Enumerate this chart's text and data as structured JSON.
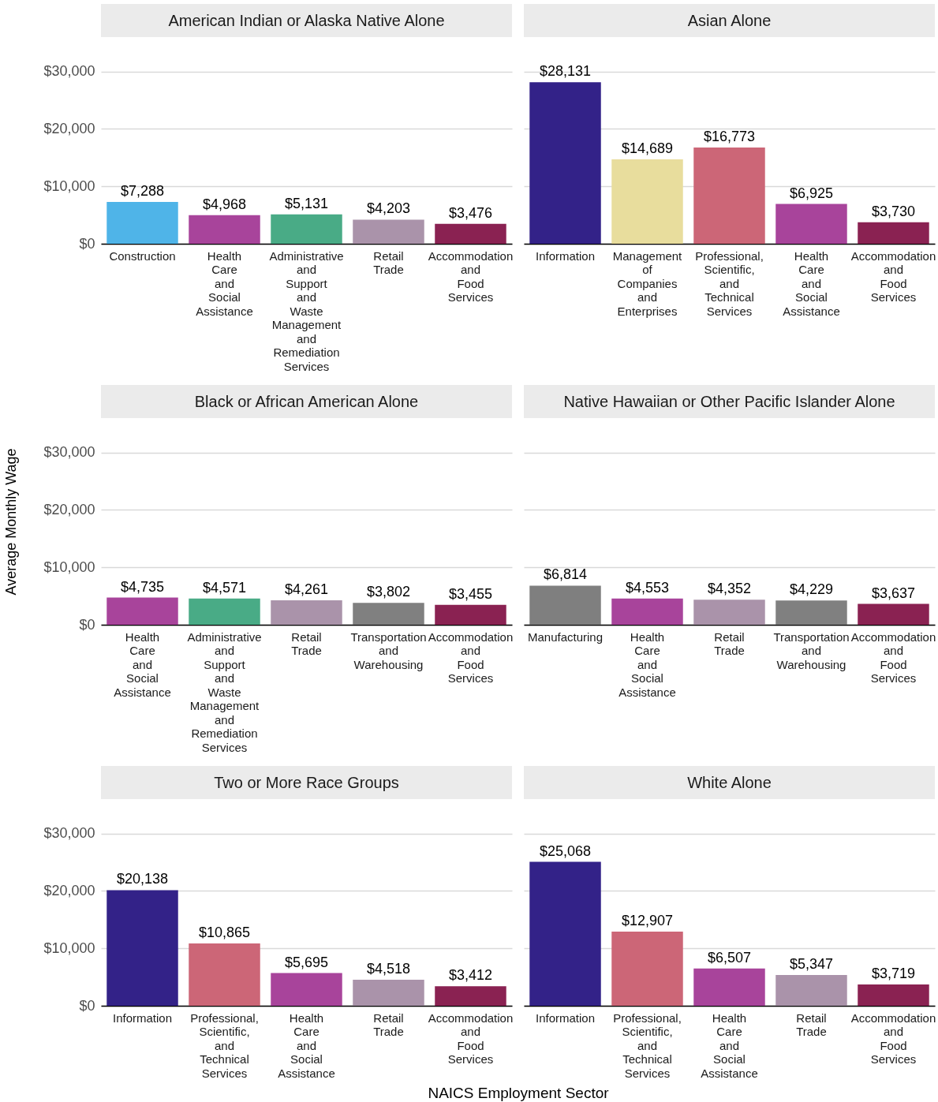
{
  "chart_data": [
    {
      "type": "bar",
      "title": "American Indian or Alaska Native Alone",
      "categories": [
        "Construction",
        "Health Care and Social Assistance",
        "Administrative and Support and Waste Management and Remediation Services",
        "Retail Trade",
        "Accommodation and Food Services"
      ],
      "values": [
        7288,
        4968,
        5131,
        4203,
        3476
      ],
      "value_labels": [
        "$7,288",
        "$4,968",
        "$5,131",
        "$4,203",
        "$3,476"
      ],
      "colors": [
        "#4fb4e8",
        "#a8449b",
        "#49ab86",
        "#aa93aa",
        "#8a2252"
      ],
      "ylim": [
        0,
        36000
      ],
      "yticks": [
        {
          "value": 0,
          "label": "$0"
        },
        {
          "value": 10000,
          "label": "$10,000"
        },
        {
          "value": 20000,
          "label": "$20,000"
        },
        {
          "value": 30000,
          "label": "$30,000"
        }
      ],
      "grid": "y"
    },
    {
      "type": "bar",
      "title": "Asian Alone",
      "categories": [
        "Information",
        "Management of Companies and Enterprises",
        "Professional, Scientific, and Technical Services",
        "Health Care and Social Assistance",
        "Accommodation and Food Services"
      ],
      "values": [
        28131,
        14689,
        16773,
        6925,
        3730
      ],
      "value_labels": [
        "$28,131",
        "$14,689",
        "$16,773",
        "$6,925",
        "$3,730"
      ],
      "colors": [
        "#332288",
        "#e8dd9d",
        "#cc6677",
        "#a8449b",
        "#8a2252"
      ],
      "ylim": [
        0,
        36000
      ],
      "yticks": [
        0,
        10000,
        20000,
        30000
      ],
      "grid": "y",
      "tick_labels": "x"
    },
    {
      "type": "bar",
      "title": "Black or African American Alone",
      "ylabel": "Average Monthly Wage",
      "categories": [
        "Health Care and Social Assistance",
        "Administrative and Support and Waste Management and Remediation Services",
        "Retail Trade",
        "Transportation and Warehousing",
        "Accommodation and Food Services"
      ],
      "values": [
        4735,
        4571,
        4261,
        3802,
        3455
      ],
      "value_labels": [
        "$4,735",
        "$4,571",
        "$4,261",
        "$3,802",
        "$3,455"
      ],
      "colors": [
        "#a8449b",
        "#49ab86",
        "#aa93aa",
        "#808080",
        "#8a2252"
      ],
      "ylim": [
        0,
        36000
      ],
      "yticks": [
        {
          "value": 0,
          "label": "$0"
        },
        {
          "value": 10000,
          "label": "$10,000"
        },
        {
          "value": 20000,
          "label": "$20,000"
        },
        {
          "value": 30000,
          "label": "$30,000"
        }
      ],
      "grid": "y"
    },
    {
      "type": "bar",
      "title": "Native Hawaiian or Other Pacific Islander Alone",
      "categories": [
        "Manufacturing",
        "Health Care and Social Assistance",
        "Retail Trade",
        "Transportation and Warehousing",
        "Accommodation and Food Services"
      ],
      "values": [
        6814,
        4553,
        4352,
        4229,
        3637
      ],
      "value_labels": [
        "$6,814",
        "$4,553",
        "$4,352",
        "$4,229",
        "$3,637"
      ],
      "colors": [
        "#7f7f7f",
        "#a8449b",
        "#aa93aa",
        "#808080",
        "#8a2252"
      ],
      "ylim": [
        0,
        36000
      ],
      "yticks": [
        0,
        10000,
        20000,
        30000
      ],
      "grid": "y",
      "tick_labels": "x"
    },
    {
      "type": "bar",
      "title": "Two or More Race Groups",
      "xlabel": "NAICS Employment Sector",
      "categories": [
        "Information",
        "Professional, Scientific, and Technical Services",
        "Health Care and Social Assistance",
        "Retail Trade",
        "Accommodation and Food Services"
      ],
      "values": [
        20138,
        10865,
        5695,
        4518,
        3412
      ],
      "value_labels": [
        "$20,138",
        "$10,865",
        "$5,695",
        "$4,518",
        "$3,412"
      ],
      "colors": [
        "#332288",
        "#cc6677",
        "#a8449b",
        "#aa93aa",
        "#8a2252"
      ],
      "ylim": [
        0,
        36000
      ],
      "yticks": [
        {
          "value": 0,
          "label": "$0"
        },
        {
          "value": 10000,
          "label": "$10,000"
        },
        {
          "value": 20000,
          "label": "$20,000"
        },
        {
          "value": 30000,
          "label": "$30,000"
        }
      ],
      "grid": "y"
    },
    {
      "type": "bar",
      "title": "White Alone",
      "categories": [
        "Information",
        "Professional, Scientific, and Technical Services",
        "Health Care and Social Assistance",
        "Retail Trade",
        "Accommodation and Food Services"
      ],
      "values": [
        25068,
        12907,
        6507,
        5347,
        3719
      ],
      "value_labels": [
        "$25,068",
        "$12,907",
        "$6,507",
        "$5,347",
        "$3,719"
      ],
      "colors": [
        "#332288",
        "#cc6677",
        "#a8449b",
        "#aa93aa",
        "#8a2252"
      ],
      "ylim": [
        0,
        36000
      ],
      "yticks": [
        0,
        10000,
        20000,
        30000
      ],
      "grid": "y",
      "tick_labels": "x"
    }
  ]
}
